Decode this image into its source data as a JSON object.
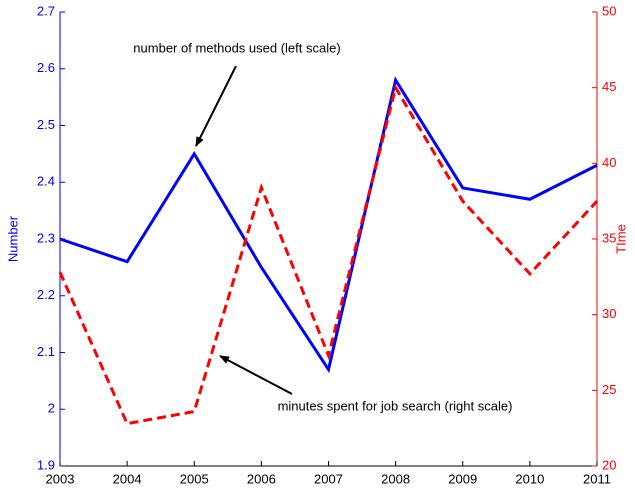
{
  "chart_data": {
    "type": "line",
    "x": [
      2003,
      2004,
      2005,
      2006,
      2007,
      2008,
      2009,
      2010,
      2011
    ],
    "xlim": [
      2003,
      2011
    ],
    "xticks": [
      2003,
      2004,
      2005,
      2006,
      2007,
      2008,
      2009,
      2010,
      2011
    ],
    "ylabel": "Number",
    "y2label": "TIme",
    "ylim": [
      1.9,
      2.7
    ],
    "yticks": [
      1.9,
      2,
      2.1,
      2.2,
      2.3,
      2.4,
      2.5,
      2.6,
      2.7
    ],
    "y2lim": [
      20,
      50
    ],
    "y2ticks": [
      20,
      25,
      30,
      35,
      40,
      45,
      50
    ],
    "series": [
      {
        "color": "#0000ff",
        "values": [
          2.3,
          2.26,
          2.45,
          2.25,
          2.07,
          2.58,
          2.39,
          2.37,
          2.43
        ]
      },
      {
        "color": "#ff0000",
        "axis": "y2",
        "dashed": true,
        "values": [
          32.8,
          22.8,
          23.6,
          38.4,
          27.3,
          45,
          37.5,
          32.7,
          37.5
        ]
      }
    ],
    "annotations": [
      "number of methods used (left scale)",
      "minutes spent for job search (right scale)"
    ]
  }
}
